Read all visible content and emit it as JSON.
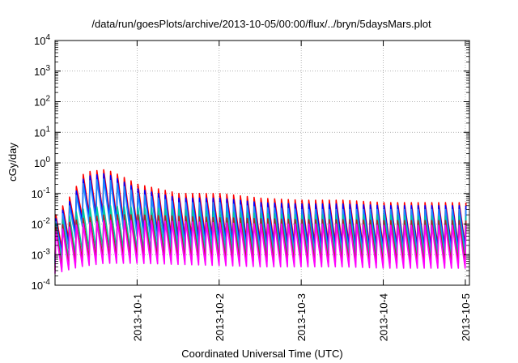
{
  "chart_data": {
    "type": "line",
    "title": "/data/run/goesPlots/archive/2013-10-05/00:00/flux/../bryn/5daysMars.plot",
    "xlabel": "Coordinated Universal Time (UTC)",
    "ylabel": "cGy/day",
    "y_scale": "log",
    "ylim": [
      0.0001,
      10000
    ],
    "y_ticks": [
      {
        "value": 10000,
        "base": "10",
        "exp": "4"
      },
      {
        "value": 1000,
        "base": "10",
        "exp": "3"
      },
      {
        "value": 100,
        "base": "10",
        "exp": "2"
      },
      {
        "value": 10,
        "base": "10",
        "exp": "1"
      },
      {
        "value": 1,
        "base": "10",
        "exp": "0"
      },
      {
        "value": 0.1,
        "base": "10",
        "exp": "-1"
      },
      {
        "value": 0.01,
        "base": "10",
        "exp": "-2"
      },
      {
        "value": 0.001,
        "base": "10",
        "exp": "-3"
      },
      {
        "value": 0.0001,
        "base": "10",
        "exp": "-4"
      }
    ],
    "x_start_day": 30.0,
    "x_end_day": 35.05,
    "x_ticks": [
      {
        "label": "2013-10-1",
        "day": 31
      },
      {
        "label": "2013-10-2",
        "day": 32
      },
      {
        "label": "2013-10-3",
        "day": 33
      },
      {
        "label": "2013-10-4",
        "day": 34
      },
      {
        "label": "2013-10-5",
        "day": 35
      }
    ],
    "grid": true,
    "legend": "none",
    "sawtooth_period_days": 0.0833,
    "sawtooth_ratio_peak_to_trough": 25,
    "series": [
      {
        "color": "#ff0000",
        "peaks": [
          [
            30.0,
            0.02
          ],
          [
            30.2,
            0.1
          ],
          [
            30.35,
            0.5
          ],
          [
            30.6,
            0.6
          ],
          [
            30.7,
            0.5
          ],
          [
            31.0,
            0.2
          ],
          [
            31.5,
            0.1
          ],
          [
            32.0,
            0.1
          ],
          [
            32.5,
            0.07
          ],
          [
            33.0,
            0.06
          ],
          [
            33.5,
            0.06
          ],
          [
            34.0,
            0.05
          ],
          [
            34.5,
            0.05
          ],
          [
            35.05,
            0.05
          ]
        ]
      },
      {
        "color": "#0000ff",
        "peaks": [
          [
            30.0,
            0.015
          ],
          [
            30.2,
            0.07
          ],
          [
            30.35,
            0.35
          ],
          [
            30.6,
            0.45
          ],
          [
            30.7,
            0.35
          ],
          [
            31.0,
            0.14
          ],
          [
            31.5,
            0.07
          ],
          [
            32.0,
            0.07
          ],
          [
            32.5,
            0.05
          ],
          [
            33.0,
            0.045
          ],
          [
            33.5,
            0.045
          ],
          [
            34.0,
            0.04
          ],
          [
            34.5,
            0.04
          ],
          [
            35.05,
            0.04
          ]
        ]
      },
      {
        "color": "#1e90ff",
        "peaks": [
          [
            30.0,
            0.012
          ],
          [
            30.2,
            0.05
          ],
          [
            30.35,
            0.25
          ],
          [
            30.6,
            0.3
          ],
          [
            30.7,
            0.25
          ],
          [
            31.0,
            0.1
          ],
          [
            31.5,
            0.05
          ],
          [
            32.0,
            0.05
          ],
          [
            32.5,
            0.035
          ],
          [
            33.0,
            0.03
          ],
          [
            33.5,
            0.03
          ],
          [
            34.0,
            0.03
          ],
          [
            34.5,
            0.03
          ],
          [
            35.05,
            0.03
          ]
        ]
      },
      {
        "color": "#00c8a0",
        "peaks": [
          [
            30.0,
            0.01
          ],
          [
            30.3,
            0.03
          ],
          [
            30.6,
            0.04
          ],
          [
            31.0,
            0.035
          ],
          [
            31.5,
            0.03
          ],
          [
            32.0,
            0.025
          ],
          [
            32.5,
            0.022
          ],
          [
            33.0,
            0.02
          ],
          [
            33.5,
            0.02
          ],
          [
            34.0,
            0.02
          ],
          [
            34.5,
            0.018
          ],
          [
            35.05,
            0.018
          ]
        ]
      },
      {
        "color": "#b22222",
        "peaks": [
          [
            30.0,
            0.008
          ],
          [
            30.3,
            0.015
          ],
          [
            30.6,
            0.02
          ],
          [
            31.0,
            0.02
          ],
          [
            31.5,
            0.018
          ],
          [
            32.0,
            0.016
          ],
          [
            32.5,
            0.015
          ],
          [
            33.0,
            0.014
          ],
          [
            33.5,
            0.014
          ],
          [
            34.0,
            0.013
          ],
          [
            34.5,
            0.013
          ],
          [
            35.05,
            0.013
          ]
        ]
      },
      {
        "color": "#ff00ff",
        "peaks": [
          [
            30.0,
            0.006
          ],
          [
            30.3,
            0.01
          ],
          [
            30.6,
            0.013
          ],
          [
            31.0,
            0.013
          ],
          [
            31.5,
            0.012
          ],
          [
            32.0,
            0.011
          ],
          [
            32.5,
            0.01
          ],
          [
            33.0,
            0.01
          ],
          [
            33.5,
            0.01
          ],
          [
            34.0,
            0.009
          ],
          [
            34.5,
            0.009
          ],
          [
            35.05,
            0.009
          ]
        ]
      }
    ]
  }
}
